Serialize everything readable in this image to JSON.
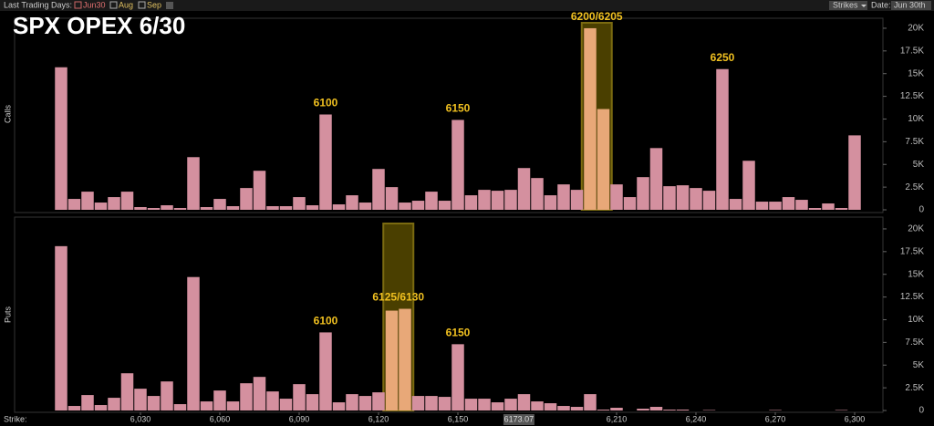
{
  "header": {
    "trading_days_label": "Last Trading Days:",
    "checkboxes": [
      "Jun30",
      "Aug",
      "Sep"
    ],
    "strikes_button": "Strikes",
    "date_label": "Date:",
    "date_value": "Jun 30th"
  },
  "title": "SPX OPEX 6/30",
  "strike_label": "Strike:",
  "chart_data": [
    {
      "type": "bar",
      "ylabel": "Calls",
      "color": "#d4909f",
      "highlight_color": "#e8a878",
      "x": [
        6000,
        6005,
        6010,
        6015,
        6020,
        6025,
        6030,
        6035,
        6040,
        6045,
        6050,
        6055,
        6060,
        6065,
        6070,
        6075,
        6080,
        6085,
        6090,
        6095,
        6100,
        6105,
        6110,
        6115,
        6120,
        6125,
        6130,
        6135,
        6140,
        6145,
        6150,
        6155,
        6160,
        6165,
        6170,
        6175,
        6180,
        6185,
        6190,
        6195,
        6200,
        6205,
        6210,
        6215,
        6220,
        6225,
        6230,
        6235,
        6240,
        6245,
        6250,
        6255,
        6260,
        6265,
        6270,
        6275,
        6280,
        6285,
        6290,
        6295,
        6300
      ],
      "values": [
        15700,
        1200,
        2000,
        800,
        1400,
        2000,
        300,
        200,
        500,
        200,
        5800,
        300,
        1200,
        400,
        2400,
        4300,
        400,
        400,
        1400,
        500,
        10500,
        600,
        1600,
        800,
        4500,
        2500,
        800,
        1000,
        2000,
        1000,
        9900,
        1600,
        2200,
        2100,
        2200,
        4600,
        3500,
        1600,
        2800,
        2200,
        20000,
        11100,
        2800,
        1400,
        3600,
        6800,
        2600,
        2700,
        2400,
        2100,
        15500,
        1200,
        5400,
        900,
        900,
        1400,
        1100,
        200,
        700,
        200,
        8200
      ],
      "highlight": [
        6200,
        6205
      ],
      "annotations": [
        {
          "text": "6100",
          "x": 6100
        },
        {
          "text": "6150",
          "x": 6150
        },
        {
          "text": "6200/6205",
          "x": 6202.5
        },
        {
          "text": "6250",
          "x": 6250
        }
      ],
      "xlim": [
        5997.5,
        6302.5
      ],
      "ylim": [
        0,
        21000
      ],
      "yticks": [
        0,
        {
          "value": 2500,
          "label": "2.5K"
        },
        {
          "value": 5000,
          "label": "5K"
        },
        {
          "value": 7500,
          "label": "7.5K"
        },
        {
          "value": 10000,
          "label": "10K"
        },
        {
          "value": 12500,
          "label": "12.5K"
        },
        {
          "value": 15000,
          "label": "15K"
        },
        {
          "value": 17500,
          "label": "17.5K"
        },
        {
          "value": 20000,
          "label": "20K"
        }
      ]
    },
    {
      "type": "bar",
      "ylabel": "Puts",
      "color": "#d4909f",
      "highlight_color": "#e8a878",
      "x": [
        6000,
        6005,
        6010,
        6015,
        6020,
        6025,
        6030,
        6035,
        6040,
        6045,
        6050,
        6055,
        6060,
        6065,
        6070,
        6075,
        6080,
        6085,
        6090,
        6095,
        6100,
        6105,
        6110,
        6115,
        6120,
        6125,
        6130,
        6135,
        6140,
        6145,
        6150,
        6155,
        6160,
        6165,
        6170,
        6175,
        6180,
        6185,
        6190,
        6195,
        6200,
        6205,
        6210,
        6215,
        6220,
        6225,
        6230,
        6235,
        6240,
        6245,
        6250,
        6255,
        6260,
        6265,
        6270,
        6275,
        6280,
        6285,
        6290,
        6295,
        6300
      ],
      "values": [
        18100,
        500,
        1700,
        600,
        1400,
        4100,
        2400,
        1600,
        3200,
        700,
        14700,
        1000,
        2200,
        1000,
        3000,
        3700,
        2100,
        1300,
        2900,
        1800,
        8600,
        900,
        1800,
        1600,
        2000,
        11000,
        11200,
        1600,
        1600,
        1500,
        7300,
        1300,
        1300,
        900,
        1300,
        1800,
        1000,
        800,
        500,
        400,
        1800,
        100,
        300,
        0,
        200,
        400,
        100,
        100,
        0,
        50,
        0,
        0,
        0,
        0,
        50,
        0,
        0,
        0,
        0,
        50,
        0
      ],
      "highlight": [
        6125,
        6130
      ],
      "annotations": [
        {
          "text": "6100",
          "x": 6100
        },
        {
          "text": "6125/6130",
          "x": 6127.5
        },
        {
          "text": "6150",
          "x": 6150
        }
      ],
      "xlim": [
        5997.5,
        6302.5
      ],
      "ylim": [
        0,
        21000
      ],
      "yticks": [
        0,
        {
          "value": 2500,
          "label": "2.5K"
        },
        {
          "value": 5000,
          "label": "5K"
        },
        {
          "value": 7500,
          "label": "7.5K"
        },
        {
          "value": 10000,
          "label": "10K"
        },
        {
          "value": 12500,
          "label": "12.5K"
        },
        {
          "value": 15000,
          "label": "15K"
        },
        {
          "value": 17500,
          "label": "17.5K"
        },
        {
          "value": 20000,
          "label": "20K"
        }
      ],
      "xticks": [
        {
          "value": 6030,
          "label": "6,030"
        },
        {
          "value": 6060,
          "label": "6,060"
        },
        {
          "value": 6090,
          "label": "6,090"
        },
        {
          "value": 6120,
          "label": "6,120"
        },
        {
          "value": 6150,
          "label": "6,150"
        },
        {
          "value": 6210,
          "label": "6,210"
        },
        {
          "value": 6240,
          "label": "6,240"
        },
        {
          "value": 6270,
          "label": "6,270"
        },
        {
          "value": 6300,
          "label": "6,300"
        }
      ],
      "cursor": 6173.07
    }
  ]
}
